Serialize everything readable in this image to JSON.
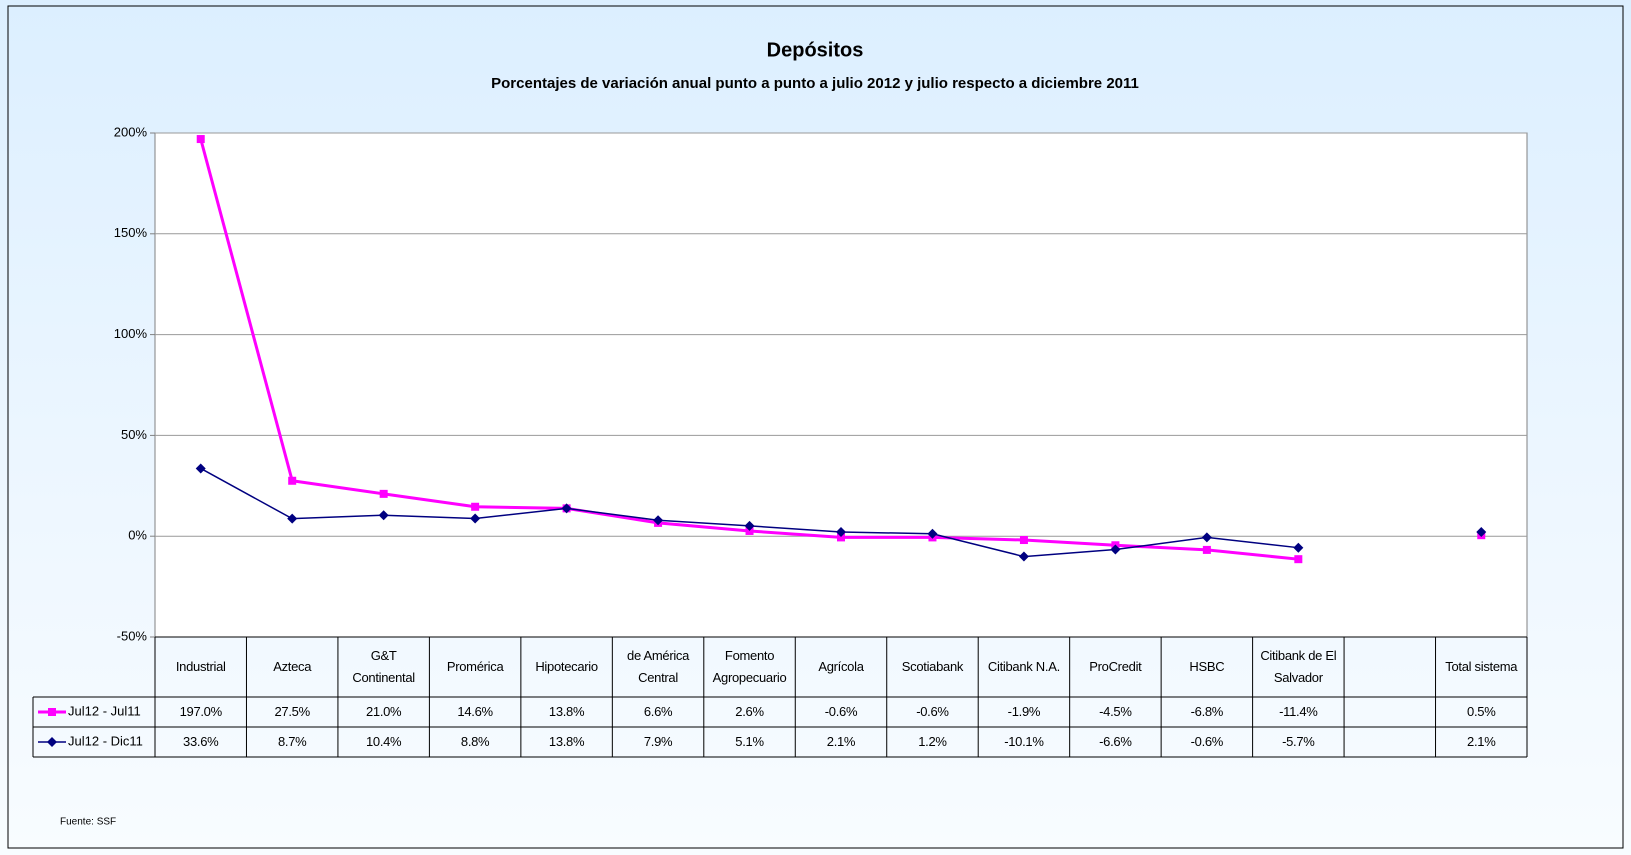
{
  "chart_data": {
    "type": "line",
    "title": "Depósitos",
    "subtitle": "Porcentajes de variación anual punto a punto a julio 2012 y julio respecto a diciembre 2011",
    "source": "Fuente: SSF",
    "categories": [
      "Industrial",
      "Azteca",
      "G&T Continental",
      "Promérica",
      "Hipotecario",
      "de América Central",
      "Fomento Agropecuario",
      "Agrícola",
      "Scotiabank",
      "Citibank N.A.",
      "ProCredit",
      "HSBC",
      "Citibank de El Salvador",
      null,
      "Total sistema"
    ],
    "series": [
      {
        "name": "Jul12 - Jul11",
        "color": "#ff00ff",
        "marker": "square",
        "values": [
          197.0,
          27.5,
          21.0,
          14.6,
          13.8,
          6.6,
          2.6,
          -0.6,
          -0.6,
          -1.9,
          -4.5,
          -6.8,
          -11.4,
          null,
          0.5
        ],
        "value_labels": [
          "197.0%",
          "27.5%",
          "21.0%",
          "14.6%",
          "13.8%",
          "6.6%",
          "2.6%",
          "-0.6%",
          "-0.6%",
          "-1.9%",
          "-4.5%",
          "-6.8%",
          "-11.4%",
          null,
          "0.5%"
        ]
      },
      {
        "name": "Jul12 - Dic11",
        "color": "#000080",
        "marker": "diamond",
        "values": [
          33.6,
          8.7,
          10.4,
          8.8,
          13.8,
          7.9,
          5.1,
          2.1,
          1.2,
          -10.1,
          -6.6,
          -0.6,
          -5.7,
          null,
          2.1
        ],
        "value_labels": [
          "33.6%",
          "8.7%",
          "10.4%",
          "8.8%",
          "13.8%",
          "7.9%",
          "5.1%",
          "2.1%",
          "1.2%",
          "-10.1%",
          "-6.6%",
          "-0.6%",
          "-5.7%",
          null,
          "2.1%"
        ]
      }
    ],
    "ylim": [
      -50,
      200
    ],
    "yticks": [
      {
        "value": -50,
        "label": "-50%"
      },
      {
        "value": 0,
        "label": "0%"
      },
      {
        "value": 50,
        "label": "50%"
      },
      {
        "value": 100,
        "label": "100%"
      },
      {
        "value": 150,
        "label": "150%"
      },
      {
        "value": 200,
        "label": "200%"
      }
    ],
    "grid": true
  }
}
